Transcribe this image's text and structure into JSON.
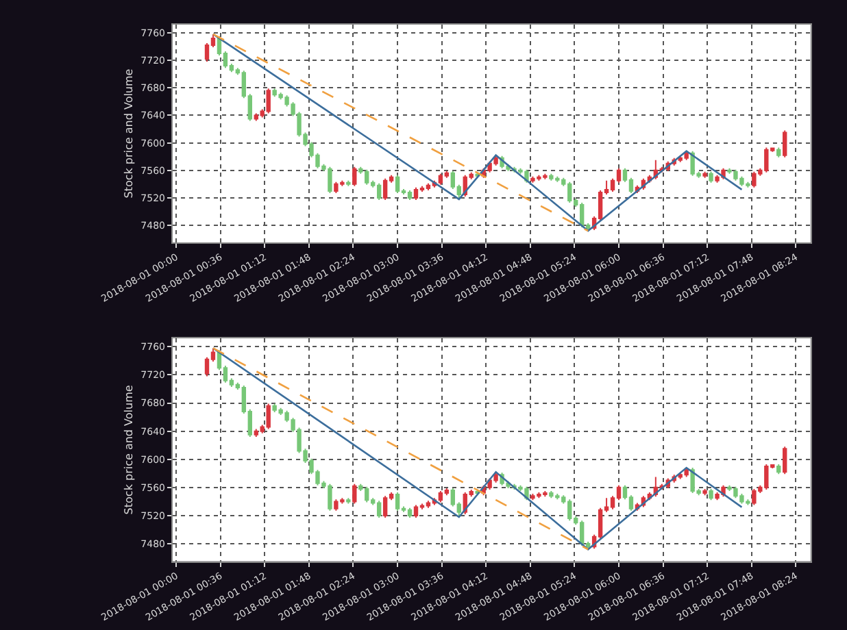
{
  "chart_data": [
    {
      "type": "candlestick",
      "ylabel": "Stock price and Volume",
      "grid": true,
      "xlim": [
        "2018-07-31T23:57",
        "2018-08-01T08:36"
      ],
      "ylim": [
        7455,
        7772
      ],
      "yticks": [
        7480,
        7520,
        7560,
        7600,
        7640,
        7680,
        7720,
        7760
      ],
      "xticks": [
        {
          "value": "2018-08-01T00:00",
          "label": "2018-08-01 00:00"
        },
        {
          "value": "2018-08-01T00:36",
          "label": "2018-08-01 00:36"
        },
        {
          "value": "2018-08-01T01:12",
          "label": "2018-08-01 01:12"
        },
        {
          "value": "2018-08-01T01:48",
          "label": "2018-08-01 01:48"
        },
        {
          "value": "2018-08-01T02:24",
          "label": "2018-08-01 02:24"
        },
        {
          "value": "2018-08-01T03:00",
          "label": "2018-08-01 03:00"
        },
        {
          "value": "2018-08-01T03:36",
          "label": "2018-08-01 03:36"
        },
        {
          "value": "2018-08-01T04:12",
          "label": "2018-08-01 04:12"
        },
        {
          "value": "2018-08-01T04:48",
          "label": "2018-08-01 04:48"
        },
        {
          "value": "2018-08-01T05:24",
          "label": "2018-08-01 05:24"
        },
        {
          "value": "2018-08-01T06:00",
          "label": "2018-08-01 06:00"
        },
        {
          "value": "2018-08-01T06:36",
          "label": "2018-08-01 06:36"
        },
        {
          "value": "2018-08-01T07:12",
          "label": "2018-08-01 07:12"
        },
        {
          "value": "2018-08-01T07:48",
          "label": "2018-08-01 07:48"
        },
        {
          "value": "2018-08-01T08:24",
          "label": "2018-08-01 08:24"
        }
      ],
      "series": [
        {
          "colors": [
            "#d9363e",
            "#d9363e",
            "#77c777",
            "#77c777",
            "#77c777",
            "#77c777",
            "#77c777",
            "#77c777",
            "#d9363e",
            "#d9363e",
            "#d9363e",
            "#77c777",
            "#77c777",
            "#77c777",
            "#77c777",
            "#77c777",
            "#77c777",
            "#77c777",
            "#77c777",
            "#77c777",
            "#77c777",
            "#d9363e",
            "#d9363e",
            "#77c777",
            "#d9363e",
            "#77c777",
            "#77c777",
            "#77c777",
            "#77c777",
            "#d9363e",
            "#d9363e",
            "#77c777",
            "#77c777",
            "#77c777",
            "#d9363e",
            "#d9363e",
            "#d9363e",
            "#d9363e",
            "#d9363e",
            "#d9363e",
            "#77c777",
            "#77c777",
            "#d9363e",
            "#d9363e",
            "#77c777",
            "#d9363e",
            "#d9363e",
            "#d9363e",
            "#77c777",
            "#77c777",
            "#77c777",
            "#77c777",
            "#77c777",
            "#d9363e",
            "#d9363e",
            "#d9363e",
            "#77c777",
            "#77c777",
            "#77c777",
            "#77c777",
            "#77c777",
            "#77c777",
            "#77c777",
            "#d9363e",
            "#d9363e",
            "#d9363e",
            "#d9363e",
            "#d9363e",
            "#77c777",
            "#77c777",
            "#d9363e",
            "#d9363e",
            "#d9363e",
            "#d9363e",
            "#d9363e",
            "#d9363e",
            "#d9363e",
            "#d9363e",
            "#d9363e",
            "#77c777",
            "#77c777",
            "#d9363e",
            "#77c777",
            "#d9363e",
            "#d9363e",
            "#77c777",
            "#77c777",
            "#77c777",
            "#77c777",
            "#d9363e",
            "#d9363e",
            "#d9363e",
            "#d9363e",
            "#77c777",
            "#d9363e"
          ],
          "x": [
            "2018-08-01T00:25",
            "2018-08-01T00:30",
            "2018-08-01T00:35",
            "2018-08-01T00:40",
            "2018-08-01T00:45",
            "2018-08-01T00:50",
            "2018-08-01T00:55",
            "2018-08-01T01:00",
            "2018-08-01T01:05",
            "2018-08-01T01:10",
            "2018-08-01T01:15",
            "2018-08-01T01:20",
            "2018-08-01T01:25",
            "2018-08-01T01:30",
            "2018-08-01T01:35",
            "2018-08-01T01:40",
            "2018-08-01T01:45",
            "2018-08-01T01:50",
            "2018-08-01T01:55",
            "2018-08-01T02:00",
            "2018-08-01T02:05",
            "2018-08-01T02:10",
            "2018-08-01T02:15",
            "2018-08-01T02:20",
            "2018-08-01T02:25",
            "2018-08-01T02:30",
            "2018-08-01T02:35",
            "2018-08-01T02:40",
            "2018-08-01T02:45",
            "2018-08-01T02:50",
            "2018-08-01T02:55",
            "2018-08-01T03:00",
            "2018-08-01T03:05",
            "2018-08-01T03:10",
            "2018-08-01T03:15",
            "2018-08-01T03:20",
            "2018-08-01T03:25",
            "2018-08-01T03:30",
            "2018-08-01T03:35",
            "2018-08-01T03:40",
            "2018-08-01T03:45",
            "2018-08-01T03:50",
            "2018-08-01T03:55",
            "2018-08-01T04:00",
            "2018-08-01T04:05",
            "2018-08-01T04:10",
            "2018-08-01T04:15",
            "2018-08-01T04:20",
            "2018-08-01T04:25",
            "2018-08-01T04:30",
            "2018-08-01T04:35",
            "2018-08-01T04:40",
            "2018-08-01T04:45",
            "2018-08-01T04:50",
            "2018-08-01T04:55",
            "2018-08-01T05:00",
            "2018-08-01T05:05",
            "2018-08-01T05:10",
            "2018-08-01T05:15",
            "2018-08-01T05:20",
            "2018-08-01T05:25",
            "2018-08-01T05:30",
            "2018-08-01T05:35",
            "2018-08-01T05:40",
            "2018-08-01T05:45",
            "2018-08-01T05:50",
            "2018-08-01T05:55",
            "2018-08-01T06:00",
            "2018-08-01T06:05",
            "2018-08-01T06:10",
            "2018-08-01T06:15",
            "2018-08-01T06:20",
            "2018-08-01T06:25",
            "2018-08-01T06:30",
            "2018-08-01T06:35",
            "2018-08-01T06:40",
            "2018-08-01T06:45",
            "2018-08-01T06:50",
            "2018-08-01T06:55",
            "2018-08-01T07:00",
            "2018-08-01T07:05",
            "2018-08-01T07:10",
            "2018-08-01T07:15",
            "2018-08-01T07:20",
            "2018-08-01T07:25",
            "2018-08-01T07:30",
            "2018-08-01T07:35",
            "2018-08-01T07:40",
            "2018-08-01T07:45",
            "2018-08-01T07:50",
            "2018-08-01T07:55",
            "2018-08-01T08:00",
            "2018-08-01T08:05",
            "2018-08-01T08:10",
            "2018-08-01T08:15"
          ],
          "ohlc": [
            [
              7722,
              7745,
              7718,
              7742
            ],
            [
              7742,
              7758,
              7739,
              7752
            ],
            [
              7752,
              7755,
              7727,
              7730
            ],
            [
              7730,
              7733,
              7709,
              7712
            ],
            [
              7712,
              7715,
              7703,
              7706
            ],
            [
              7706,
              7709,
              7699,
              7702
            ],
            [
              7702,
              7705,
              7665,
              7668
            ],
            [
              7668,
              7671,
              7632,
              7635
            ],
            [
              7635,
              7643,
              7632,
              7640
            ],
            [
              7640,
              7649,
              7637,
              7646
            ],
            [
              7646,
              7679,
              7643,
              7676
            ],
            [
              7676,
              7679,
              7667,
              7670
            ],
            [
              7670,
              7673,
              7663,
              7666
            ],
            [
              7666,
              7669,
              7653,
              7656
            ],
            [
              7656,
              7659,
              7639,
              7642
            ],
            [
              7642,
              7645,
              7609,
              7612
            ],
            [
              7612,
              7615,
              7595,
              7598
            ],
            [
              7598,
              7601,
              7579,
              7582
            ],
            [
              7582,
              7585,
              7563,
              7566
            ],
            [
              7566,
              7569,
              7559,
              7562
            ],
            [
              7562,
              7565,
              7527,
              7530
            ],
            [
              7530,
              7543,
              7527,
              7540
            ],
            [
              7540,
              7545,
              7537,
              7542
            ],
            [
              7542,
              7545,
              7537,
              7540
            ],
            [
              7540,
              7565,
              7537,
              7562
            ],
            [
              7562,
              7565,
              7555,
              7558
            ],
            [
              7558,
              7561,
              7539,
              7542
            ],
            [
              7542,
              7545,
              7535,
              7538
            ],
            [
              7538,
              7541,
              7517,
              7520
            ],
            [
              7520,
              7548,
              7517,
              7545
            ],
            [
              7545,
              7553,
              7542,
              7550
            ],
            [
              7550,
              7553,
              7527,
              7530
            ],
            [
              7530,
              7533,
              7525,
              7528
            ],
            [
              7528,
              7531,
              7517,
              7520
            ],
            [
              7520,
              7535,
              7517,
              7532
            ],
            [
              7532,
              7537,
              7529,
              7534
            ],
            [
              7534,
              7541,
              7531,
              7538
            ],
            [
              7538,
              7545,
              7535,
              7542
            ],
            [
              7542,
              7555,
              7539,
              7552
            ],
            [
              7552,
              7559,
              7549,
              7556
            ],
            [
              7556,
              7559,
              7533,
              7536
            ],
            [
              7536,
              7539,
              7518,
              7525
            ],
            [
              7525,
              7553,
              7522,
              7550
            ],
            [
              7550,
              7557,
              7547,
              7554
            ],
            [
              7554,
              7557,
              7549,
              7552
            ],
            [
              7552,
              7563,
              7549,
              7560
            ],
            [
              7560,
              7573,
              7557,
              7570
            ],
            [
              7570,
              7582,
              7567,
              7578
            ],
            [
              7578,
              7581,
              7563,
              7566
            ],
            [
              7566,
              7569,
              7559,
              7562
            ],
            [
              7562,
              7565,
              7557,
              7560
            ],
            [
              7560,
              7563,
              7555,
              7558
            ],
            [
              7558,
              7561,
              7542,
              7545
            ],
            [
              7545,
              7551,
              7542,
              7548
            ],
            [
              7548,
              7553,
              7545,
              7550
            ],
            [
              7550,
              7555,
              7547,
              7552
            ],
            [
              7552,
              7555,
              7545,
              7548
            ],
            [
              7548,
              7551,
              7543,
              7546
            ],
            [
              7546,
              7549,
              7537,
              7540
            ],
            [
              7540,
              7543,
              7513,
              7516
            ],
            [
              7516,
              7519,
              7507,
              7510
            ],
            [
              7510,
              7513,
              7477,
              7480
            ],
            [
              7480,
              7483,
              7472,
              7476
            ],
            [
              7476,
              7493,
              7473,
              7490
            ],
            [
              7490,
              7531,
              7487,
              7528
            ],
            [
              7528,
              7545,
              7525,
              7532
            ],
            [
              7532,
              7548,
              7529,
              7545
            ],
            [
              7545,
              7563,
              7542,
              7560
            ],
            [
              7560,
              7563,
              7543,
              7546
            ],
            [
              7546,
              7549,
              7527,
              7530
            ],
            [
              7530,
              7538,
              7527,
              7535
            ],
            [
              7535,
              7548,
              7532,
              7545
            ],
            [
              7545,
              7553,
              7542,
              7550
            ],
            [
              7550,
              7575,
              7547,
              7560
            ],
            [
              7560,
              7565,
              7557,
              7562
            ],
            [
              7562,
              7573,
              7559,
              7570
            ],
            [
              7570,
              7578,
              7567,
              7575
            ],
            [
              7575,
              7581,
              7572,
              7578
            ],
            [
              7578,
              7588,
              7575,
              7585
            ],
            [
              7585,
              7588,
              7552,
              7555
            ],
            [
              7555,
              7558,
              7549,
              7552
            ],
            [
              7552,
              7558,
              7549,
              7555
            ],
            [
              7555,
              7558,
              7542,
              7545
            ],
            [
              7545,
              7553,
              7542,
              7550
            ],
            [
              7550,
              7563,
              7547,
              7560
            ],
            [
              7560,
              7563,
              7555,
              7558
            ],
            [
              7558,
              7561,
              7545,
              7548
            ],
            [
              7548,
              7551,
              7537,
              7540
            ],
            [
              7540,
              7543,
              7535,
              7538
            ],
            [
              7538,
              7558,
              7535,
              7555
            ],
            [
              7555,
              7563,
              7552,
              7560
            ],
            [
              7560,
              7593,
              7557,
              7590
            ],
            [
              7589,
              7593,
              7587,
              7592
            ],
            [
              7590,
              7593,
              7579,
              7582
            ],
            [
              7582,
              7618,
              7579,
              7615
            ]
          ]
        },
        {
          "type": "line",
          "color": "#3c6e9c",
          "line_style": "solid",
          "x": [
            "2018-08-01T00:30",
            "2018-08-01T03:50",
            "2018-08-01T04:20",
            "2018-08-01T05:35",
            "2018-08-01T06:55",
            "2018-08-01T07:40"
          ],
          "values": [
            7758,
            7518,
            7582,
            7472,
            7588,
            7532
          ]
        },
        {
          "type": "line",
          "color": "#f0a040",
          "line_style": "dashed",
          "x": [
            "2018-08-01T00:30",
            "2018-08-01T05:35"
          ],
          "values": [
            7758,
            7472
          ]
        }
      ]
    },
    {
      "type": "candlestick",
      "ylabel": "Stock price and Volume",
      "grid": true,
      "xlim": [
        "2018-07-31T23:57",
        "2018-08-01T08:36"
      ],
      "ylim": [
        7455,
        7772
      ],
      "yticks": [
        7480,
        7520,
        7560,
        7600,
        7640,
        7680,
        7720,
        7760
      ],
      "xticks": [
        {
          "value": "2018-08-01T00:00",
          "label": "2018-08-01 00:00"
        },
        {
          "value": "2018-08-01T00:36",
          "label": "2018-08-01 00:36"
        },
        {
          "value": "2018-08-01T01:12",
          "label": "2018-08-01 01:12"
        },
        {
          "value": "2018-08-01T01:48",
          "label": "2018-08-01 01:48"
        },
        {
          "value": "2018-08-01T02:24",
          "label": "2018-08-01 02:24"
        },
        {
          "value": "2018-08-01T03:00",
          "label": "2018-08-01 03:00"
        },
        {
          "value": "2018-08-01T03:36",
          "label": "2018-08-01 03:36"
        },
        {
          "value": "2018-08-01T04:12",
          "label": "2018-08-01 04:12"
        },
        {
          "value": "2018-08-01T04:48",
          "label": "2018-08-01 04:48"
        },
        {
          "value": "2018-08-01T05:24",
          "label": "2018-08-01 05:24"
        },
        {
          "value": "2018-08-01T06:00",
          "label": "2018-08-01 06:00"
        },
        {
          "value": "2018-08-01T06:36",
          "label": "2018-08-01 06:36"
        },
        {
          "value": "2018-08-01T07:12",
          "label": "2018-08-01 07:12"
        },
        {
          "value": "2018-08-01T07:48",
          "label": "2018-08-01 07:48"
        },
        {
          "value": "2018-08-01T08:24",
          "label": "2018-08-01 08:24"
        }
      ],
      "series": [
        {
          "colors": [
            "#d9363e",
            "#d9363e",
            "#77c777",
            "#77c777",
            "#77c777",
            "#77c777",
            "#77c777",
            "#77c777",
            "#d9363e",
            "#d9363e",
            "#d9363e",
            "#77c777",
            "#77c777",
            "#77c777",
            "#77c777",
            "#77c777",
            "#77c777",
            "#77c777",
            "#77c777",
            "#77c777",
            "#77c777",
            "#d9363e",
            "#d9363e",
            "#77c777",
            "#d9363e",
            "#77c777",
            "#77c777",
            "#77c777",
            "#77c777",
            "#d9363e",
            "#d9363e",
            "#77c777",
            "#77c777",
            "#77c777",
            "#d9363e",
            "#d9363e",
            "#d9363e",
            "#d9363e",
            "#d9363e",
            "#d9363e",
            "#77c777",
            "#77c777",
            "#d9363e",
            "#d9363e",
            "#77c777",
            "#d9363e",
            "#d9363e",
            "#d9363e",
            "#77c777",
            "#77c777",
            "#77c777",
            "#77c777",
            "#77c777",
            "#d9363e",
            "#d9363e",
            "#d9363e",
            "#77c777",
            "#77c777",
            "#77c777",
            "#77c777",
            "#77c777",
            "#77c777",
            "#77c777",
            "#d9363e",
            "#d9363e",
            "#d9363e",
            "#d9363e",
            "#d9363e",
            "#77c777",
            "#77c777",
            "#d9363e",
            "#d9363e",
            "#d9363e",
            "#d9363e",
            "#d9363e",
            "#d9363e",
            "#d9363e",
            "#d9363e",
            "#d9363e",
            "#77c777",
            "#77c777",
            "#d9363e",
            "#77c777",
            "#d9363e",
            "#d9363e",
            "#77c777",
            "#77c777",
            "#77c777",
            "#77c777",
            "#d9363e",
            "#d9363e",
            "#d9363e",
            "#d9363e",
            "#77c777",
            "#d9363e"
          ],
          "x": [
            "2018-08-01T00:25",
            "2018-08-01T00:30",
            "2018-08-01T00:35",
            "2018-08-01T00:40",
            "2018-08-01T00:45",
            "2018-08-01T00:50",
            "2018-08-01T00:55",
            "2018-08-01T01:00",
            "2018-08-01T01:05",
            "2018-08-01T01:10",
            "2018-08-01T01:15",
            "2018-08-01T01:20",
            "2018-08-01T01:25",
            "2018-08-01T01:30",
            "2018-08-01T01:35",
            "2018-08-01T01:40",
            "2018-08-01T01:45",
            "2018-08-01T01:50",
            "2018-08-01T01:55",
            "2018-08-01T02:00",
            "2018-08-01T02:05",
            "2018-08-01T02:10",
            "2018-08-01T02:15",
            "2018-08-01T02:20",
            "2018-08-01T02:25",
            "2018-08-01T02:30",
            "2018-08-01T02:35",
            "2018-08-01T02:40",
            "2018-08-01T02:45",
            "2018-08-01T02:50",
            "2018-08-01T02:55",
            "2018-08-01T03:00",
            "2018-08-01T03:05",
            "2018-08-01T03:10",
            "2018-08-01T03:15",
            "2018-08-01T03:20",
            "2018-08-01T03:25",
            "2018-08-01T03:30",
            "2018-08-01T03:35",
            "2018-08-01T03:40",
            "2018-08-01T03:45",
            "2018-08-01T03:50",
            "2018-08-01T03:55",
            "2018-08-01T04:00",
            "2018-08-01T04:05",
            "2018-08-01T04:10",
            "2018-08-01T04:15",
            "2018-08-01T04:20",
            "2018-08-01T04:25",
            "2018-08-01T04:30",
            "2018-08-01T04:35",
            "2018-08-01T04:40",
            "2018-08-01T04:45",
            "2018-08-01T04:50",
            "2018-08-01T04:55",
            "2018-08-01T05:00",
            "2018-08-01T05:05",
            "2018-08-01T05:10",
            "2018-08-01T05:15",
            "2018-08-01T05:20",
            "2018-08-01T05:25",
            "2018-08-01T05:30",
            "2018-08-01T05:35",
            "2018-08-01T05:40",
            "2018-08-01T05:45",
            "2018-08-01T05:50",
            "2018-08-01T05:55",
            "2018-08-01T06:00",
            "2018-08-01T06:05",
            "2018-08-01T06:10",
            "2018-08-01T06:15",
            "2018-08-01T06:20",
            "2018-08-01T06:25",
            "2018-08-01T06:30",
            "2018-08-01T06:35",
            "2018-08-01T06:40",
            "2018-08-01T06:45",
            "2018-08-01T06:50",
            "2018-08-01T06:55",
            "2018-08-01T07:00",
            "2018-08-01T07:05",
            "2018-08-01T07:10",
            "2018-08-01T07:15",
            "2018-08-01T07:20",
            "2018-08-01T07:25",
            "2018-08-01T07:30",
            "2018-08-01T07:35",
            "2018-08-01T07:40",
            "2018-08-01T07:45",
            "2018-08-01T07:50",
            "2018-08-01T07:55",
            "2018-08-01T08:00",
            "2018-08-01T08:05",
            "2018-08-01T08:10",
            "2018-08-01T08:15"
          ],
          "ohlc": [
            [
              7722,
              7745,
              7718,
              7742
            ],
            [
              7742,
              7758,
              7739,
              7752
            ],
            [
              7752,
              7755,
              7727,
              7730
            ],
            [
              7730,
              7733,
              7709,
              7712
            ],
            [
              7712,
              7715,
              7703,
              7706
            ],
            [
              7706,
              7709,
              7699,
              7702
            ],
            [
              7702,
              7705,
              7665,
              7668
            ],
            [
              7668,
              7671,
              7632,
              7635
            ],
            [
              7635,
              7643,
              7632,
              7640
            ],
            [
              7640,
              7649,
              7637,
              7646
            ],
            [
              7646,
              7679,
              7643,
              7676
            ],
            [
              7676,
              7679,
              7667,
              7670
            ],
            [
              7670,
              7673,
              7663,
              7666
            ],
            [
              7666,
              7669,
              7653,
              7656
            ],
            [
              7656,
              7659,
              7639,
              7642
            ],
            [
              7642,
              7645,
              7609,
              7612
            ],
            [
              7612,
              7615,
              7595,
              7598
            ],
            [
              7598,
              7601,
              7579,
              7582
            ],
            [
              7582,
              7585,
              7563,
              7566
            ],
            [
              7566,
              7569,
              7559,
              7562
            ],
            [
              7562,
              7565,
              7527,
              7530
            ],
            [
              7530,
              7543,
              7527,
              7540
            ],
            [
              7540,
              7545,
              7537,
              7542
            ],
            [
              7542,
              7545,
              7537,
              7540
            ],
            [
              7540,
              7565,
              7537,
              7562
            ],
            [
              7562,
              7565,
              7555,
              7558
            ],
            [
              7558,
              7561,
              7539,
              7542
            ],
            [
              7542,
              7545,
              7535,
              7538
            ],
            [
              7538,
              7541,
              7517,
              7520
            ],
            [
              7520,
              7548,
              7517,
              7545
            ],
            [
              7545,
              7553,
              7542,
              7550
            ],
            [
              7550,
              7553,
              7527,
              7530
            ],
            [
              7530,
              7533,
              7525,
              7528
            ],
            [
              7528,
              7531,
              7517,
              7520
            ],
            [
              7520,
              7535,
              7517,
              7532
            ],
            [
              7532,
              7537,
              7529,
              7534
            ],
            [
              7534,
              7541,
              7531,
              7538
            ],
            [
              7538,
              7545,
              7535,
              7542
            ],
            [
              7542,
              7555,
              7539,
              7552
            ],
            [
              7552,
              7559,
              7549,
              7556
            ],
            [
              7556,
              7559,
              7533,
              7536
            ],
            [
              7536,
              7539,
              7518,
              7525
            ],
            [
              7525,
              7553,
              7522,
              7550
            ],
            [
              7550,
              7557,
              7547,
              7554
            ],
            [
              7554,
              7557,
              7549,
              7552
            ],
            [
              7552,
              7563,
              7549,
              7560
            ],
            [
              7560,
              7573,
              7557,
              7570
            ],
            [
              7570,
              7582,
              7567,
              7578
            ],
            [
              7578,
              7581,
              7563,
              7566
            ],
            [
              7566,
              7569,
              7559,
              7562
            ],
            [
              7562,
              7565,
              7557,
              7560
            ],
            [
              7560,
              7563,
              7555,
              7558
            ],
            [
              7558,
              7561,
              7542,
              7545
            ],
            [
              7545,
              7551,
              7542,
              7548
            ],
            [
              7548,
              7553,
              7545,
              7550
            ],
            [
              7550,
              7555,
              7547,
              7552
            ],
            [
              7552,
              7555,
              7545,
              7548
            ],
            [
              7548,
              7551,
              7543,
              7546
            ],
            [
              7546,
              7549,
              7537,
              7540
            ],
            [
              7540,
              7543,
              7513,
              7516
            ],
            [
              7516,
              7519,
              7507,
              7510
            ],
            [
              7510,
              7513,
              7477,
              7480
            ],
            [
              7480,
              7483,
              7472,
              7476
            ],
            [
              7476,
              7493,
              7473,
              7490
            ],
            [
              7490,
              7531,
              7487,
              7528
            ],
            [
              7528,
              7545,
              7525,
              7532
            ],
            [
              7532,
              7548,
              7529,
              7545
            ],
            [
              7545,
              7563,
              7542,
              7560
            ],
            [
              7560,
              7563,
              7543,
              7546
            ],
            [
              7546,
              7549,
              7527,
              7530
            ],
            [
              7530,
              7538,
              7527,
              7535
            ],
            [
              7535,
              7548,
              7532,
              7545
            ],
            [
              7545,
              7553,
              7542,
              7550
            ],
            [
              7550,
              7575,
              7547,
              7560
            ],
            [
              7560,
              7565,
              7557,
              7562
            ],
            [
              7562,
              7573,
              7559,
              7570
            ],
            [
              7570,
              7578,
              7567,
              7575
            ],
            [
              7575,
              7581,
              7572,
              7578
            ],
            [
              7578,
              7588,
              7575,
              7585
            ],
            [
              7585,
              7588,
              7552,
              7555
            ],
            [
              7555,
              7558,
              7549,
              7552
            ],
            [
              7552,
              7558,
              7549,
              7555
            ],
            [
              7555,
              7558,
              7542,
              7545
            ],
            [
              7545,
              7553,
              7542,
              7550
            ],
            [
              7550,
              7563,
              7547,
              7560
            ],
            [
              7560,
              7563,
              7555,
              7558
            ],
            [
              7558,
              7561,
              7545,
              7548
            ],
            [
              7548,
              7551,
              7537,
              7540
            ],
            [
              7540,
              7543,
              7535,
              7538
            ],
            [
              7538,
              7558,
              7535,
              7555
            ],
            [
              7555,
              7563,
              7552,
              7560
            ],
            [
              7560,
              7593,
              7557,
              7590
            ],
            [
              7589,
              7593,
              7587,
              7592
            ],
            [
              7590,
              7593,
              7579,
              7582
            ],
            [
              7582,
              7618,
              7579,
              7615
            ]
          ]
        },
        {
          "type": "line",
          "color": "#3c6e9c",
          "line_style": "solid",
          "x": [
            "2018-08-01T00:30",
            "2018-08-01T03:50",
            "2018-08-01T04:20",
            "2018-08-01T05:35",
            "2018-08-01T06:55",
            "2018-08-01T07:40"
          ],
          "values": [
            7758,
            7518,
            7582,
            7472,
            7588,
            7532
          ]
        },
        {
          "type": "line",
          "color": "#f0a040",
          "line_style": "dashed",
          "x": [
            "2018-08-01T00:30",
            "2018-08-01T05:35"
          ],
          "values": [
            7758,
            7472
          ]
        }
      ]
    }
  ]
}
